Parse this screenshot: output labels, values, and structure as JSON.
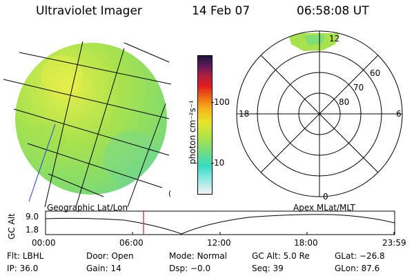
{
  "header": {
    "title": "Ultraviolet Imager",
    "date": "14 Feb 07",
    "time": "06:58:08 UT"
  },
  "colorbar": {
    "unit_label": "photon cm⁻²s⁻¹",
    "ticks": [
      {
        "label": "100",
        "value": 100
      },
      {
        "label": "10",
        "value": 10
      }
    ]
  },
  "polar": {
    "mlt_labels": {
      "top": "12",
      "left": "18",
      "right": "6",
      "bottom": "0"
    },
    "lat_labels": [
      "60",
      "70",
      "80"
    ]
  },
  "timeline": {
    "left_title": "Geographic Lat/Lon",
    "right_title": "Apex  MLat/MLT",
    "ylabel": "GC Alt",
    "ymax_label": "9.0",
    "ymin_label": "1.8",
    "ticks": [
      "00:00",
      "06:00",
      "12:00",
      "18:00",
      "23:59"
    ],
    "marker_time": "06:58"
  },
  "status": {
    "row1": [
      {
        "key": "Flt:",
        "value": "LBHL"
      },
      {
        "key": "Door:",
        "value": "Open"
      },
      {
        "key": "Mode:",
        "value": "Normal"
      },
      {
        "key": "GC Alt:",
        "value": "5.0 Re"
      },
      {
        "key": "GLat:",
        "value": "−26.8"
      }
    ],
    "row2": [
      {
        "key": "IP:",
        "value": "36.0"
      },
      {
        "key": "Gain:",
        "value": "14"
      },
      {
        "key": "Dsp:",
        "value": "−0.0"
      },
      {
        "key": "Seq:",
        "value": "39"
      },
      {
        "key": "GLon:",
        "value": "87.6"
      }
    ]
  }
}
